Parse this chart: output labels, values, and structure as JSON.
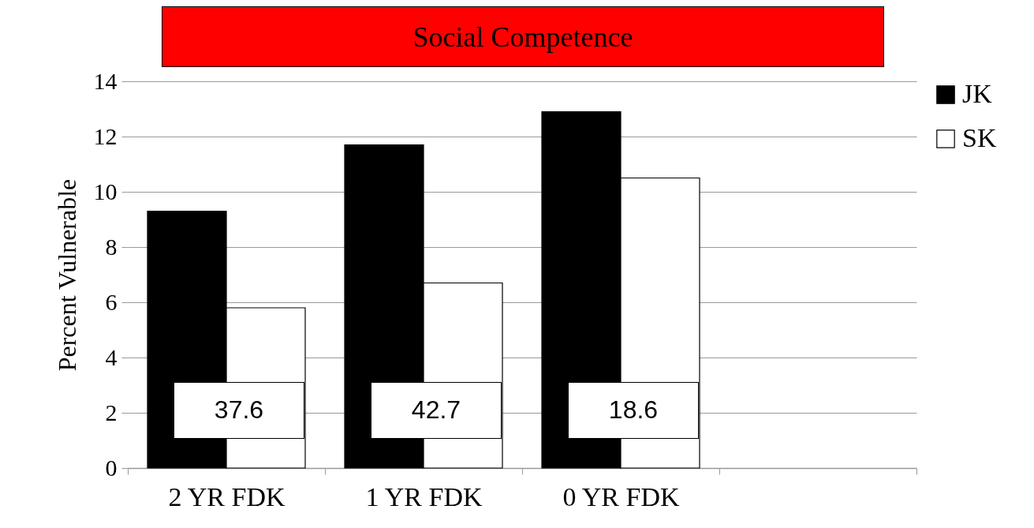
{
  "chart_data": {
    "type": "bar",
    "title": "Social Competence",
    "ylabel": "Percent Vulnerable",
    "categories": [
      "2 YR FDK",
      "1 YR FDK",
      "0 YR FDK",
      null
    ],
    "series": [
      {
        "name": "JK",
        "color": "#000000",
        "values": [
          9.3,
          11.7,
          12.9,
          null
        ]
      },
      {
        "name": "SK",
        "color": "#ffffff",
        "values": [
          5.8,
          6.7,
          10.5,
          null
        ]
      }
    ],
    "ylim": [
      0,
      14
    ],
    "yticks": [
      0,
      2,
      4,
      6,
      8,
      10,
      12,
      14
    ],
    "grid": "y",
    "legend": "right",
    "annotations": [
      {
        "text": "37.6",
        "x": "2 YR FDK",
        "y": 2.1
      },
      {
        "text": "42.7",
        "x": "1 YR FDK",
        "y": 2.1
      },
      {
        "text": "18.6",
        "x": "0 YR FDK",
        "y": 2.1
      }
    ]
  }
}
